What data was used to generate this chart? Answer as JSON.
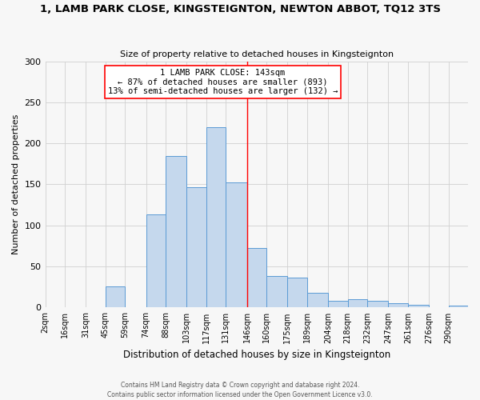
{
  "title": "1, LAMB PARK CLOSE, KINGSTEIGNTON, NEWTON ABBOT, TQ12 3TS",
  "subtitle": "Size of property relative to detached houses in Kingsteignton",
  "xlabel": "Distribution of detached houses by size in Kingsteignton",
  "ylabel": "Number of detached properties",
  "footer_line1": "Contains HM Land Registry data © Crown copyright and database right 2024.",
  "footer_line2": "Contains public sector information licensed under the Open Government Licence v3.0.",
  "bin_labels": [
    "2sqm",
    "16sqm",
    "31sqm",
    "45sqm",
    "59sqm",
    "74sqm",
    "88sqm",
    "103sqm",
    "117sqm",
    "131sqm",
    "146sqm",
    "160sqm",
    "175sqm",
    "189sqm",
    "204sqm",
    "218sqm",
    "232sqm",
    "247sqm",
    "261sqm",
    "276sqm",
    "290sqm"
  ],
  "bar_heights": [
    0,
    0,
    0,
    26,
    0,
    113,
    185,
    147,
    220,
    152,
    73,
    38,
    36,
    18,
    8,
    10,
    8,
    5,
    3,
    0,
    2
  ],
  "bar_color": "#c5d8ed",
  "bar_edge_color": "#5b9bd5",
  "annotation_line_x_label": "146sqm",
  "annotation_line_color": "red",
  "annotation_box_text_line1": "1 LAMB PARK CLOSE: 143sqm",
  "annotation_box_text_line2": "← 87% of detached houses are smaller (893)",
  "annotation_box_text_line3": "13% of semi-detached houses are larger (132) →",
  "ylim": [
    0,
    300
  ],
  "yticks": [
    0,
    50,
    100,
    150,
    200,
    250,
    300
  ],
  "grid_color": "#d0d0d0",
  "background_color": "#f7f7f7",
  "bin_edges": [
    2,
    16,
    31,
    45,
    59,
    74,
    88,
    103,
    117,
    131,
    146,
    160,
    175,
    189,
    204,
    218,
    232,
    247,
    261,
    276,
    290,
    304
  ]
}
